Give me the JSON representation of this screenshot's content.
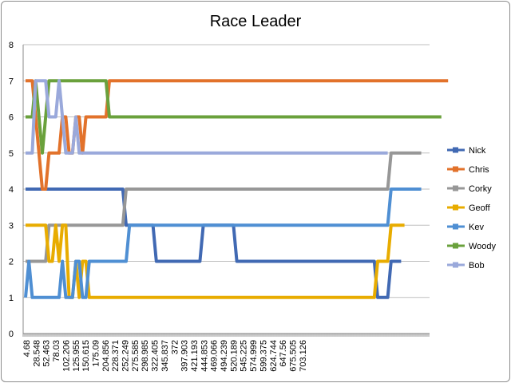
{
  "chart_data": {
    "type": "line",
    "title": "Race Leader",
    "xlabel": "",
    "ylabel": "",
    "ylim": [
      0,
      8
    ],
    "y_ticks": [
      0,
      1,
      2,
      3,
      4,
      5,
      6,
      7,
      8
    ],
    "x_tick_labels": [
      "4.68",
      "28.548",
      "52.463",
      "78.03",
      "102.206",
      "125.955",
      "150.615",
      "175.09",
      "204.856",
      "228.371",
      "252.249",
      "275.585",
      "298.985",
      "322.405",
      "345.837",
      "372",
      "397.903",
      "421.193",
      "444.853",
      "469.066",
      "494.239",
      "520.189",
      "545.225",
      "574.999",
      "599.375",
      "624.744",
      "647.56",
      "675.505",
      "703.126"
    ],
    "grid": "horizontal",
    "legend_position": "right",
    "x_categories": 40,
    "series": [
      {
        "name": "Nick",
        "color": "#4169b3",
        "points": [
          [
            0,
            4
          ],
          [
            14.5,
            4
          ],
          [
            15,
            3
          ],
          [
            19,
            3
          ],
          [
            19.5,
            2
          ],
          [
            26,
            2
          ],
          [
            26.5,
            3
          ],
          [
            31,
            3
          ],
          [
            31.5,
            2
          ],
          [
            52,
            2
          ],
          [
            52.5,
            1
          ],
          [
            54,
            1
          ],
          [
            54.5,
            2
          ],
          [
            56,
            2
          ]
        ]
      },
      {
        "name": "Chris",
        "color": "#e2722b",
        "points": [
          [
            0,
            7
          ],
          [
            1,
            7
          ],
          [
            1.5,
            6
          ],
          [
            2,
            5
          ],
          [
            2.5,
            4
          ],
          [
            3,
            4
          ],
          [
            3.5,
            5
          ],
          [
            5,
            5
          ],
          [
            5.5,
            6
          ],
          [
            6,
            6
          ],
          [
            6.5,
            5
          ],
          [
            7,
            5
          ],
          [
            7.5,
            6
          ],
          [
            8,
            6
          ],
          [
            8.5,
            5
          ],
          [
            9,
            6
          ],
          [
            12,
            6
          ],
          [
            12.5,
            7
          ],
          [
            63,
            7
          ]
        ]
      },
      {
        "name": "Corky",
        "color": "#979797",
        "points": [
          [
            0,
            2
          ],
          [
            3,
            2
          ],
          [
            3.5,
            3
          ],
          [
            14.5,
            3
          ],
          [
            15,
            4
          ],
          [
            54,
            4
          ],
          [
            54.5,
            5
          ],
          [
            59,
            5
          ]
        ]
      },
      {
        "name": "Geoff",
        "color": "#e8ac00",
        "points": [
          [
            0,
            3
          ],
          [
            3,
            3
          ],
          [
            3.5,
            2
          ],
          [
            4,
            2
          ],
          [
            4.5,
            3
          ],
          [
            5,
            2
          ],
          [
            5.5,
            3
          ],
          [
            6,
            3
          ],
          [
            6.5,
            1
          ],
          [
            7,
            1
          ],
          [
            7.5,
            2
          ],
          [
            8,
            1
          ],
          [
            8.5,
            2
          ],
          [
            9,
            2
          ],
          [
            9.5,
            1
          ],
          [
            52,
            1
          ],
          [
            52.5,
            2
          ],
          [
            54,
            2
          ],
          [
            54.5,
            3
          ],
          [
            56.5,
            3
          ]
        ]
      },
      {
        "name": "Kev",
        "color": "#4f8fd3",
        "points": [
          [
            0,
            1
          ],
          [
            0.5,
            2
          ],
          [
            1,
            1
          ],
          [
            5,
            1
          ],
          [
            5.5,
            2
          ],
          [
            6,
            1
          ],
          [
            7,
            1
          ],
          [
            7.5,
            2
          ],
          [
            8,
            2
          ],
          [
            8.5,
            1
          ],
          [
            9,
            1
          ],
          [
            9.5,
            2
          ],
          [
            15,
            2
          ],
          [
            15.5,
            3
          ],
          [
            54,
            3
          ],
          [
            54.5,
            4
          ],
          [
            59,
            4
          ]
        ]
      },
      {
        "name": "Woody",
        "color": "#6aa13c",
        "points": [
          [
            0,
            6
          ],
          [
            1,
            6
          ],
          [
            1.5,
            7
          ],
          [
            2,
            6
          ],
          [
            2.5,
            5
          ],
          [
            3,
            6
          ],
          [
            3.5,
            7
          ],
          [
            12,
            7
          ],
          [
            12.5,
            6
          ],
          [
            62,
            6
          ]
        ]
      },
      {
        "name": "Bob",
        "color": "#9aa9db",
        "points": [
          [
            0,
            5
          ],
          [
            1,
            5
          ],
          [
            1.5,
            7
          ],
          [
            3,
            7
          ],
          [
            3.5,
            6
          ],
          [
            4.5,
            6
          ],
          [
            5,
            7
          ],
          [
            5.5,
            6
          ],
          [
            6,
            5
          ],
          [
            7,
            5
          ],
          [
            7.5,
            6
          ],
          [
            8,
            5
          ],
          [
            9,
            5
          ],
          [
            9.5,
            5
          ],
          [
            54,
            5
          ]
        ]
      }
    ]
  }
}
